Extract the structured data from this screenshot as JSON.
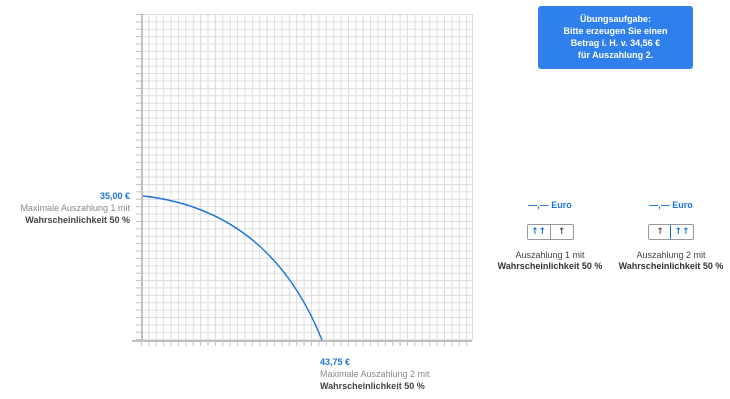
{
  "graph": {
    "y_point_value": "35,00 €",
    "y_point_text": "Maximale Auszahlung 1 mit",
    "y_point_prob": "Wahrscheinlichkeit 50 %",
    "x_point_value": "43,75 €",
    "x_point_text": "Maximale Auszahlung 2 mit",
    "x_point_prob": "Wahrscheinlichkeit 50 %",
    "curve_color": "#1a73d9"
  },
  "task": {
    "line1": "Übungsaufgabe:",
    "line2": "Bitte erzeugen Sie einen",
    "line3": "Betrag i. H. v. 34,56 €",
    "line4": "für Auszahlung 2.",
    "background": "#2f80ed"
  },
  "payout1": {
    "value": "—,— Euro",
    "btn_big": "↑↑",
    "btn_small": "↑",
    "label": "Auszahlung 1 mit",
    "label_bold": "Wahrscheinlichkeit 50 %"
  },
  "payout2": {
    "value": "—,— Euro",
    "btn_small": "↑",
    "btn_big": "↑↑",
    "label": "Auszahlung 2 mit",
    "label_bold": "Wahrscheinlichkeit 50 %"
  },
  "icons": {
    "up": "arrow-up-icon",
    "double_up": "double-arrow-up-icon"
  }
}
